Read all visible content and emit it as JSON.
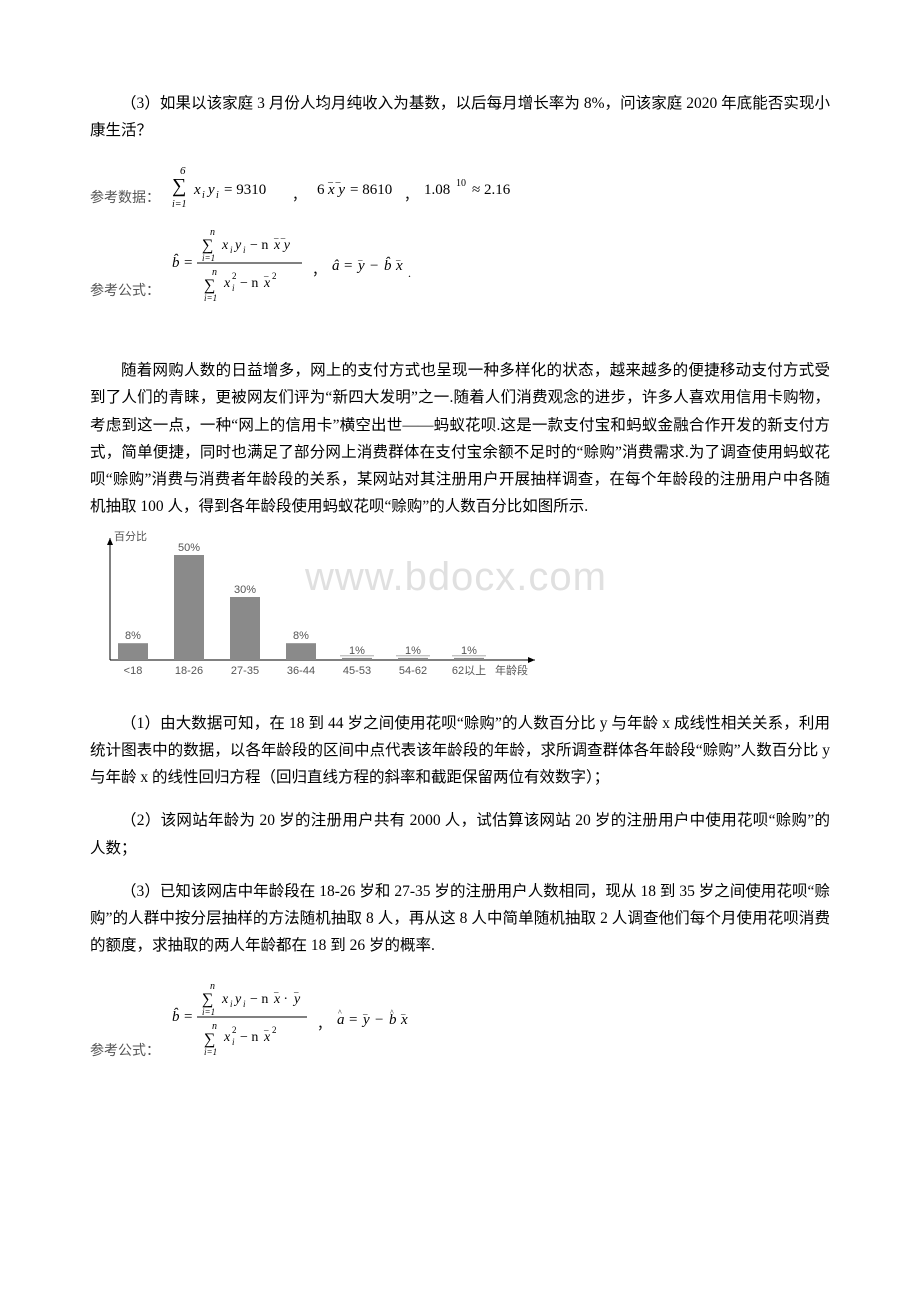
{
  "section1": {
    "q3": "（3）如果以该家庭 3 月份人均月纯收入为基数，以后每月增长率为 8%，问该家庭 2020 年底能否实现小康生活？",
    "ref_data_label": "参考数据：",
    "ref_data_parts": {
      "sum_expr": "\\sum_{i=1}^{6} x_i y_i = 9310",
      "mean_expr": "6\\overline{x}\\overline{y} = 8610",
      "power_expr": "1.08^{10} \\approx 2.16"
    },
    "ref_formula_label": "参考公式：",
    "ref_formula_parts": {
      "b_hat": "\\hat{b} = \\frac{\\sum_{i=1}^{n} x_i y_i - n\\overline{x}\\overline{y}}{\\sum_{i=1}^{n} x_i^2 - n\\overline{x}^2}",
      "a_hat": "\\hat{a} = \\overline{y} - \\hat{b}\\overline{x}"
    }
  },
  "section2": {
    "intro": "随着网购人数的日益增多，网上的支付方式也呈现一种多样化的状态，越来越多的便捷移动支付方式受到了人们的青睐，更被网友们评为“新四大发明”之一.随着人们消费观念的进步，许多人喜欢用信用卡购物，考虑到这一点，一种“网上的信用卡”横空出世——蚂蚁花呗.这是一款支付宝和蚂蚁金融合作开发的新支付方式，简单便捷，同时也满足了部分网上消费群体在支付宝余额不足时的“赊购”消费需求.为了调查使用蚂蚁花呗“赊购”消费与消费者年龄段的关系，某网站对其注册用户开展抽样调查，在每个年龄段的注册用户中各随机抽取 100 人，得到各年龄段使用蚂蚁花呗“赊购”的人数百分比如图所示.",
    "chart": {
      "type": "bar",
      "y_axis_label": "百分比",
      "x_axis_label": "年龄段",
      "categories": [
        "<18",
        "18-26",
        "27-35",
        "36-44",
        "45-53",
        "54-62",
        "62以上"
      ],
      "values_pct": [
        8,
        50,
        30,
        8,
        1,
        1,
        1
      ],
      "value_labels": [
        "8%",
        "50%",
        "30%",
        "8%",
        "1%",
        "1%",
        "1%"
      ],
      "bar_color": "#8a8a8a",
      "text_color": "#555555",
      "axis_color": "#000000",
      "background": "#ffffff",
      "label_fontsize": 11,
      "axis_fontsize": 11
    },
    "watermark": "www.bdocx.com",
    "q1": "（1）由大数据可知，在 18 到 44 岁之间使用花呗“赊购”的人数百分比 y 与年龄 x 成线性相关关系，利用统计图表中的数据，以各年龄段的区间中点代表该年龄段的年龄，求所调查群体各年龄段“赊购”人数百分比 y 与年龄 x 的线性回归方程（回归直线方程的斜率和截距保留两位有效数字）；",
    "q2": "（2）该网站年龄为 20 岁的注册用户共有 2000 人，试估算该网站 20 岁的注册用户中使用花呗“赊购”的人数；",
    "q3": "（3）已知该网店中年龄段在 18-26 岁和 27-35 岁的注册用户人数相同，现从 18 到 35 岁之间使用花呗“赊购”的人群中按分层抽样的方法随机抽取 8 人，再从这 8 人中简单随机抽取 2 人调查他们每个月使用花呗消费的额度，求抽取的两人年龄都在 18 到 26 岁的概率.",
    "ref_formula_label": "参考公式：",
    "ref_formula_parts": {
      "b_hat": "\\hat{b} = \\frac{\\sum_{i=1}^{n} x_i y_i - n\\overline{x}\\cdot\\overline{y}}{\\sum_{i=1}^{n} x_i^2 - n\\overline{x}^2}",
      "a_hat": "\\hat{a} = \\overline{y} - \\hat{b}\\overline{x}"
    }
  }
}
